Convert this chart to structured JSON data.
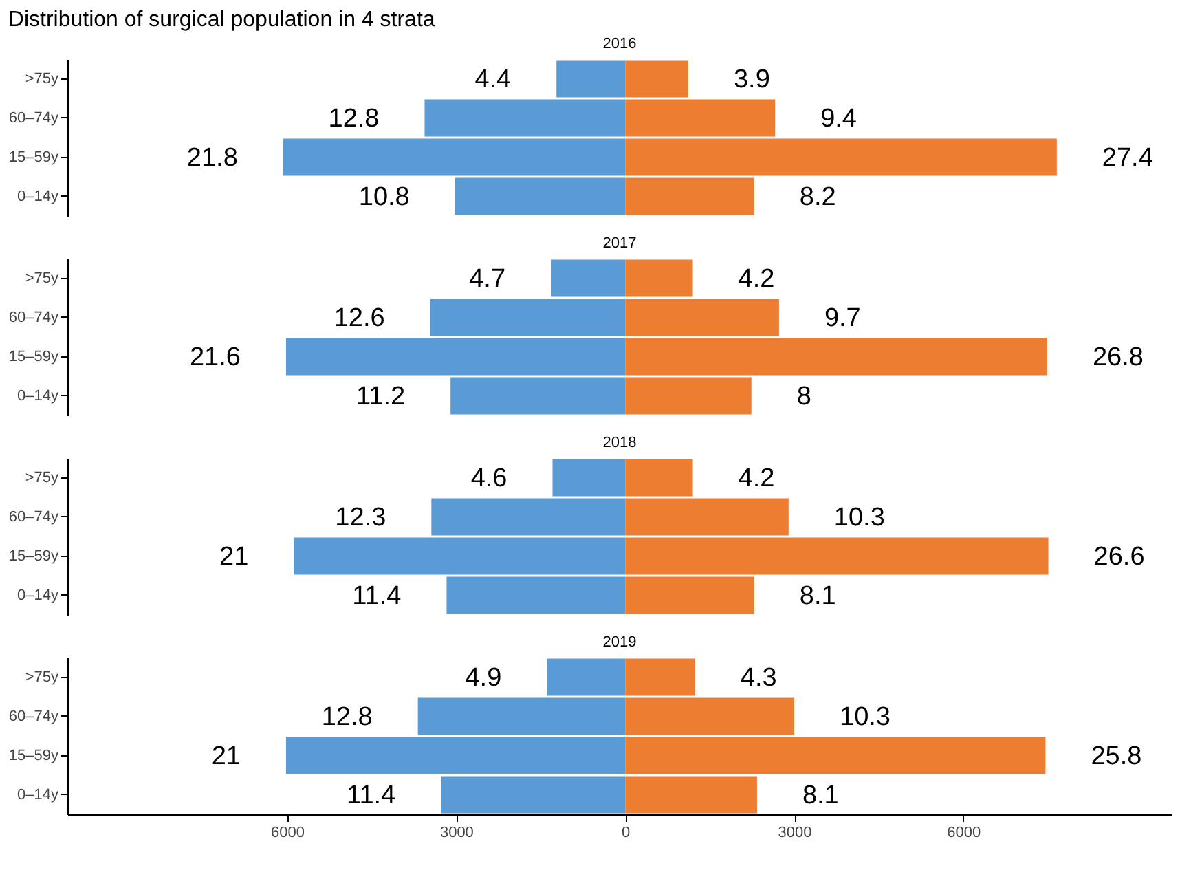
{
  "chart_data": [
    {
      "type": "bar",
      "orientation": "horizontal",
      "title": "Distribution of surgical population in 4 strata",
      "subtitle": "2016",
      "stacked": true,
      "categories": [
        ">75y",
        "60–74y",
        "15–59y",
        "0–14y"
      ],
      "tick_labels": "y",
      "xlim": [
        -9900,
        9700
      ],
      "series": [
        {
          "color": "#5b9bd5",
          "values": [
            -1220,
            -3560,
            -6070,
            -3020
          ]
        },
        {
          "color": "#ed7d31",
          "values": [
            1120,
            2660,
            7660,
            2290
          ]
        }
      ],
      "annotations": [
        {
          "text": "4.4",
          "x": -1220,
          "y": ">75y"
        },
        {
          "text": "12.8",
          "x": -3560,
          "y": "60–74y"
        },
        {
          "text": "21.8",
          "x": -6070,
          "y": "15–59y"
        },
        {
          "text": "10.8",
          "x": -3020,
          "y": "0–14y"
        },
        {
          "text": "3.9",
          "x": 1120,
          "y": ">75y"
        },
        {
          "text": "9.4",
          "x": 2660,
          "y": "60–74y"
        },
        {
          "text": "27.4",
          "x": 7660,
          "y": "15–59y"
        },
        {
          "text": "8.2",
          "x": 2290,
          "y": "0–14y"
        }
      ]
    },
    {
      "type": "bar",
      "orientation": "horizontal",
      "subtitle": "2017",
      "stacked": true,
      "categories": [
        ">75y",
        "60–74y",
        "15–59y",
        "0–14y"
      ],
      "tick_labels": "y",
      "xlim": [
        -9900,
        9700
      ],
      "series": [
        {
          "color": "#5b9bd5",
          "values": [
            -1320,
            -3460,
            -6020,
            -3100
          ]
        },
        {
          "color": "#ed7d31",
          "values": [
            1200,
            2730,
            7490,
            2240
          ]
        }
      ],
      "annotations": [
        {
          "text": "4.7",
          "x": -1320,
          "y": ">75y"
        },
        {
          "text": "12.6",
          "x": -3460,
          "y": "60–74y"
        },
        {
          "text": "21.6",
          "x": -6020,
          "y": "15–59y"
        },
        {
          "text": "11.2",
          "x": -3100,
          "y": "0–14y"
        },
        {
          "text": "4.2",
          "x": 1200,
          "y": ">75y"
        },
        {
          "text": "9.7",
          "x": 2730,
          "y": "60–74y"
        },
        {
          "text": "26.8",
          "x": 7490,
          "y": "15–59y"
        },
        {
          "text": "8",
          "x": 2240,
          "y": "0–14y"
        }
      ]
    },
    {
      "type": "bar",
      "orientation": "horizontal",
      "subtitle": "2018",
      "stacked": true,
      "categories": [
        ">75y",
        "60–74y",
        "15–59y",
        "0–14y"
      ],
      "tick_labels": "y",
      "xlim": [
        -9900,
        9700
      ],
      "series": [
        {
          "color": "#5b9bd5",
          "values": [
            -1290,
            -3440,
            -5880,
            -3170
          ]
        },
        {
          "color": "#ed7d31",
          "values": [
            1200,
            2900,
            7510,
            2290
          ]
        }
      ],
      "annotations": [
        {
          "text": "4.6",
          "x": -1290,
          "y": ">75y"
        },
        {
          "text": "12.3",
          "x": -3440,
          "y": "60–74y"
        },
        {
          "text": "21",
          "x": -5880,
          "y": "15–59y"
        },
        {
          "text": "11.4",
          "x": -3170,
          "y": "0–14y"
        },
        {
          "text": "4.2",
          "x": 1200,
          "y": ">75y"
        },
        {
          "text": "10.3",
          "x": 2900,
          "y": "60–74y"
        },
        {
          "text": "26.6",
          "x": 7510,
          "y": "15–59y"
        },
        {
          "text": "8.1",
          "x": 2290,
          "y": "0–14y"
        }
      ]
    },
    {
      "type": "bar",
      "orientation": "horizontal",
      "subtitle": "2019",
      "stacked": true,
      "categories": [
        ">75y",
        "60–74y",
        "15–59y",
        "0–14y"
      ],
      "xlim": [
        -9900,
        9700
      ],
      "xticks": [
        {
          "value": -6000,
          "label": "6000"
        },
        {
          "value": -3000,
          "label": "3000"
        },
        0,
        3000,
        6000
      ],
      "series": [
        {
          "color": "#5b9bd5",
          "values": [
            -1390,
            -3680,
            -6020,
            -3270
          ]
        },
        {
          "color": "#ed7d31",
          "values": [
            1240,
            3000,
            7460,
            2340
          ]
        }
      ],
      "annotations": [
        {
          "text": "4.9",
          "x": -1390,
          "y": ">75y"
        },
        {
          "text": "12.8",
          "x": -3680,
          "y": "60–74y"
        },
        {
          "text": "21",
          "x": -6020,
          "y": "15–59y"
        },
        {
          "text": "11.4",
          "x": -3270,
          "y": "0–14y"
        },
        {
          "text": "4.3",
          "x": 1240,
          "y": ">75y"
        },
        {
          "text": "10.3",
          "x": 3000,
          "y": "60–74y"
        },
        {
          "text": "25.8",
          "x": 7460,
          "y": "15–59y"
        },
        {
          "text": "8.1",
          "x": 2340,
          "y": "0–14y"
        }
      ]
    }
  ]
}
